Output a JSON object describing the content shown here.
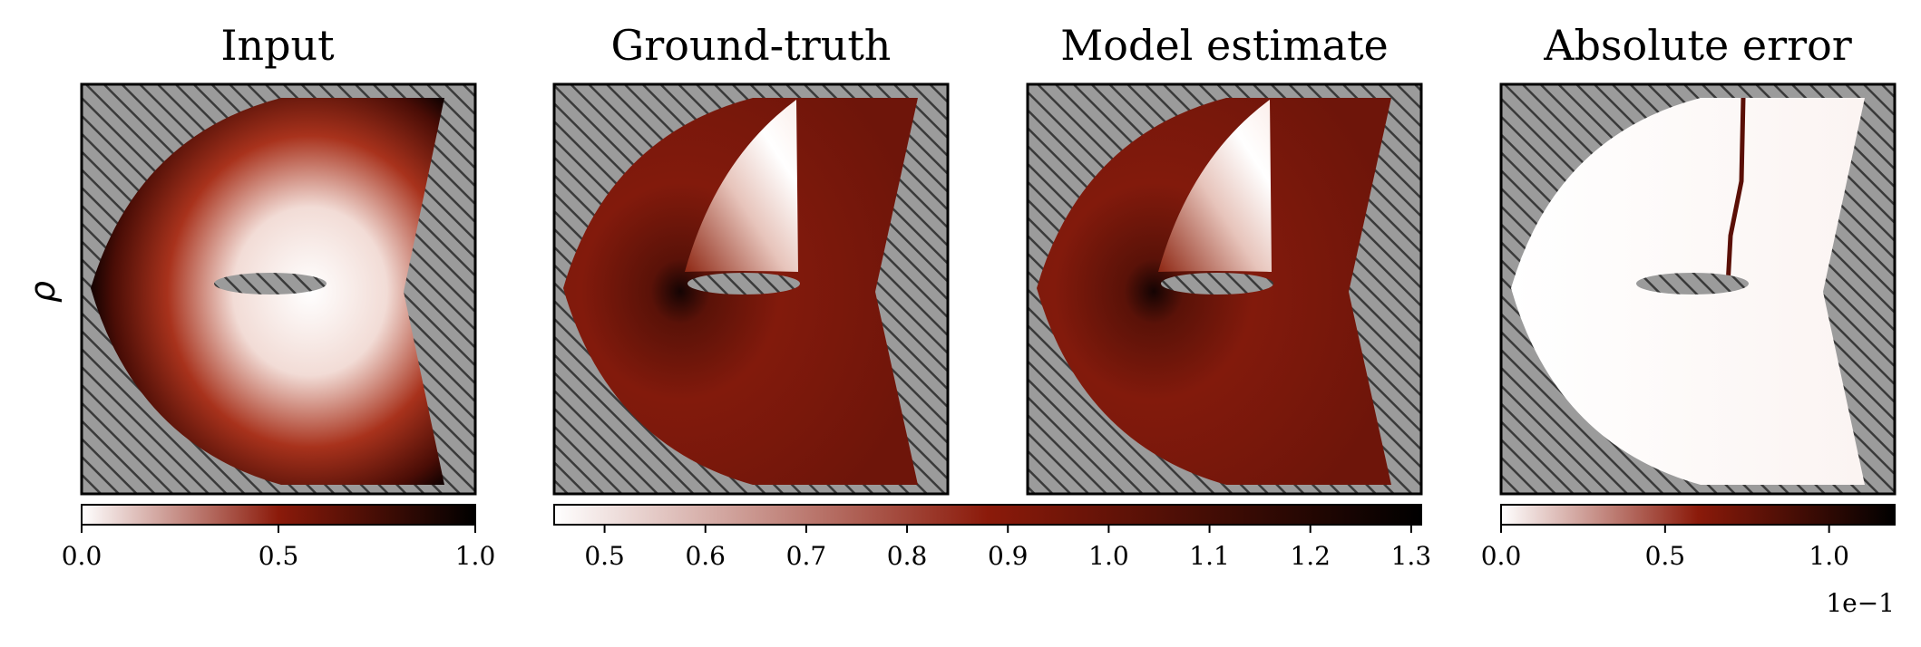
{
  "figure": {
    "row_label": "ρ",
    "panels": [
      {
        "title": "Input"
      },
      {
        "title": "Ground-truth"
      },
      {
        "title": "Model estimate"
      },
      {
        "title": "Absolute error"
      }
    ],
    "colorbars": [
      {
        "ticks": [
          "0.0",
          "0.5",
          "1.0"
        ],
        "values": [
          0.0,
          0.5,
          1.0
        ],
        "range": [
          0.0,
          1.0
        ]
      },
      {
        "ticks": [
          "0.5",
          "0.6",
          "0.7",
          "0.8",
          "0.9",
          "1.0",
          "1.1",
          "1.2",
          "1.3"
        ],
        "values": [
          0.5,
          0.6,
          0.7,
          0.8,
          0.9,
          1.0,
          1.1,
          1.2,
          1.3
        ],
        "range": [
          0.45,
          1.31
        ]
      },
      {
        "ticks": [
          "0.0",
          "0.5",
          "1.0"
        ],
        "values": [
          0.0,
          0.5,
          1.0
        ],
        "range": [
          0.0,
          1.2
        ],
        "offset_label": "1e−1"
      }
    ],
    "colormap": [
      "#ffffff",
      "#8b1a0a",
      "#000000"
    ],
    "hatch_color": "#9b9b9b"
  }
}
